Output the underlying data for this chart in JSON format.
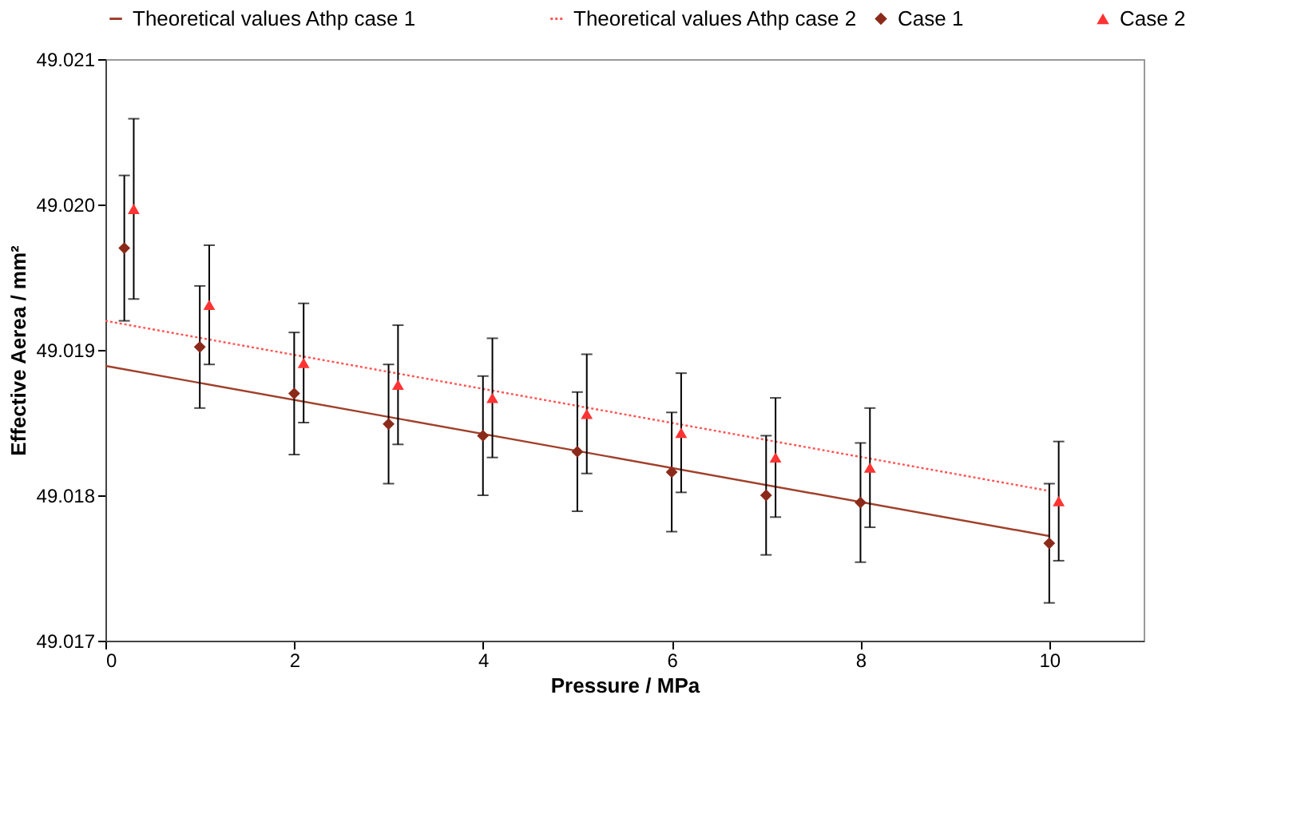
{
  "chart_data": {
    "type": "scatter",
    "xlabel": "Pressure / MPa",
    "ylabel": "Effective Aerea / mm²",
    "xlim": [
      0,
      11
    ],
    "xticks": [
      0,
      2,
      4,
      6,
      8,
      10
    ],
    "ylim": [
      49.017,
      49.021
    ],
    "yticks": [
      49.017,
      49.018,
      49.019,
      {
        "value": 49.02,
        "label": "49.020"
      },
      49.021
    ],
    "grid": false,
    "legend": "top",
    "series": [
      {
        "name": "Case 1",
        "type": "scatter",
        "marker": "diamond",
        "color": "#8b2a1a",
        "x": [
          0.2,
          1,
          2,
          3,
          4,
          5,
          6,
          7,
          8,
          10
        ],
        "values": [
          49.0197,
          49.01902,
          49.0187,
          49.01849,
          49.01841,
          49.0183,
          49.01816,
          49.018,
          49.01795,
          49.01767
        ],
        "errors": [
          0.0005,
          0.00042,
          0.00042,
          0.00041,
          0.00041,
          0.00041,
          0.00041,
          0.00041,
          0.00041,
          0.00041
        ]
      },
      {
        "name": "Case 2",
        "type": "scatter",
        "marker": "triangle",
        "color": "#ff3333",
        "x": [
          0.3,
          1.1,
          2.1,
          3.1,
          4.1,
          5.1,
          6.1,
          7.1,
          8.1,
          10.1
        ],
        "values": [
          49.01997,
          49.01931,
          49.01891,
          49.01876,
          49.01867,
          49.01856,
          49.01843,
          49.01826,
          49.01819,
          49.01796
        ],
        "errors": [
          0.00062,
          0.00041,
          0.00041,
          0.00041,
          0.00041,
          0.00041,
          0.00041,
          0.00041,
          0.00041,
          0.00041
        ]
      },
      {
        "name": "Theoretical values Athp case 1",
        "type": "line",
        "line_style": "solid",
        "color": "#a0402a",
        "x": [
          0,
          10
        ],
        "values": [
          49.01889,
          49.01772
        ]
      },
      {
        "name": "Theoretical values Athp case 2",
        "type": "line",
        "line_style": "dotted",
        "color": "#ff5555",
        "x": [
          0,
          10
        ],
        "values": [
          49.0192,
          49.01803
        ]
      }
    ]
  }
}
